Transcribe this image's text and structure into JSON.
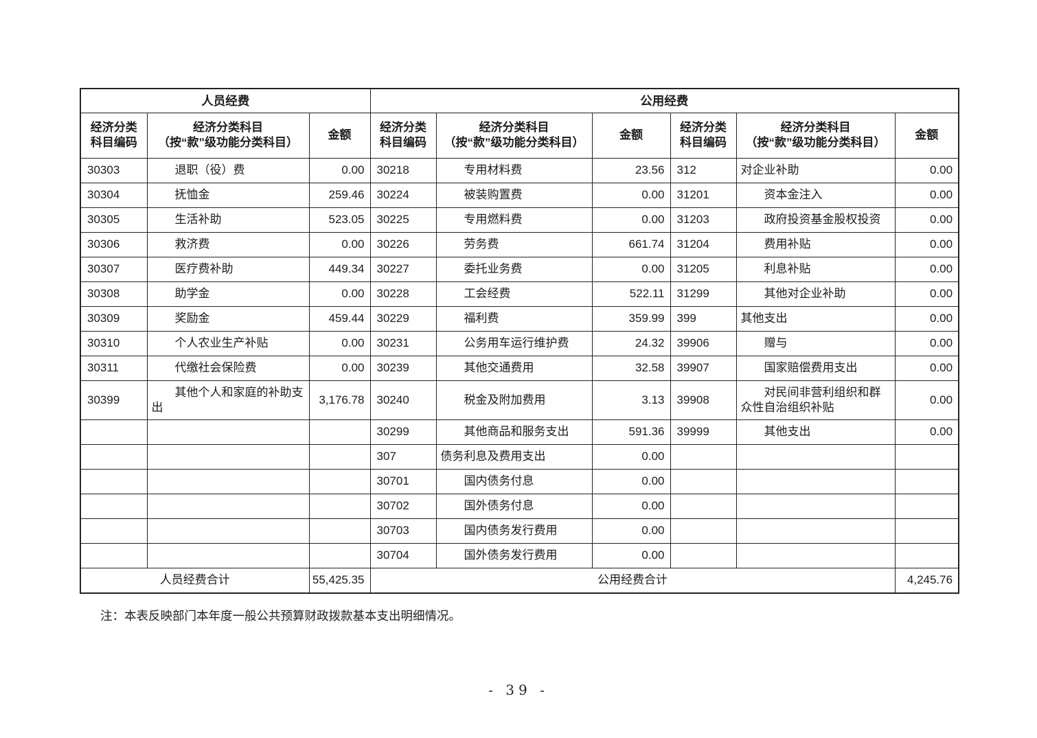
{
  "page": {
    "note": "注：本表反映部门本年度一般公共预算财政拨款基本支出明细情况。",
    "page_number": "- 39 -"
  },
  "table": {
    "group_headers": {
      "personnel": "人员经费",
      "public": "公用经费"
    },
    "column_headers": {
      "code": "经济分类\n科目编码",
      "name_line1": "经济分类科目",
      "name_line2": "（按“款”级功能分类科目）",
      "amount": "金额"
    },
    "rows": [
      {
        "tall": false,
        "cells": [
          {
            "code": "30303",
            "name": "退职（役）费",
            "amount": "0.00",
            "indent": true
          },
          {
            "code": "30218",
            "name": "专用材料费",
            "amount": "23.56",
            "indent": true
          },
          {
            "code": "312",
            "name": "对企业补助",
            "amount": "0.00",
            "indent": false
          }
        ]
      },
      {
        "tall": false,
        "cells": [
          {
            "code": "30304",
            "name": "抚恤金",
            "amount": "259.46",
            "indent": true
          },
          {
            "code": "30224",
            "name": "被装购置费",
            "amount": "0.00",
            "indent": true
          },
          {
            "code": "31201",
            "name": "资本金注入",
            "amount": "0.00",
            "indent": true
          }
        ]
      },
      {
        "tall": false,
        "cells": [
          {
            "code": "30305",
            "name": "生活补助",
            "amount": "523.05",
            "indent": true
          },
          {
            "code": "30225",
            "name": "专用燃料费",
            "amount": "0.00",
            "indent": true
          },
          {
            "code": "31203",
            "name": "政府投资基金股权投资",
            "amount": "0.00",
            "indent": true
          }
        ]
      },
      {
        "tall": false,
        "cells": [
          {
            "code": "30306",
            "name": "救济费",
            "amount": "0.00",
            "indent": true
          },
          {
            "code": "30226",
            "name": "劳务费",
            "amount": "661.74",
            "indent": true
          },
          {
            "code": "31204",
            "name": "费用补贴",
            "amount": "0.00",
            "indent": true
          }
        ]
      },
      {
        "tall": false,
        "cells": [
          {
            "code": "30307",
            "name": "医疗费补助",
            "amount": "449.34",
            "indent": true
          },
          {
            "code": "30227",
            "name": "委托业务费",
            "amount": "0.00",
            "indent": true
          },
          {
            "code": "31205",
            "name": "利息补贴",
            "amount": "0.00",
            "indent": true
          }
        ]
      },
      {
        "tall": false,
        "cells": [
          {
            "code": "30308",
            "name": "助学金",
            "amount": "0.00",
            "indent": true
          },
          {
            "code": "30228",
            "name": "工会经费",
            "amount": "522.11",
            "indent": true
          },
          {
            "code": "31299",
            "name": "其他对企业补助",
            "amount": "0.00",
            "indent": true
          }
        ]
      },
      {
        "tall": false,
        "cells": [
          {
            "code": "30309",
            "name": "奖励金",
            "amount": "459.44",
            "indent": true
          },
          {
            "code": "30229",
            "name": "福利费",
            "amount": "359.99",
            "indent": true
          },
          {
            "code": "399",
            "name": "其他支出",
            "amount": "0.00",
            "indent": false
          }
        ]
      },
      {
        "tall": false,
        "cells": [
          {
            "code": "30310",
            "name": "个人农业生产补贴",
            "amount": "0.00",
            "indent": true
          },
          {
            "code": "30231",
            "name": "公务用车运行维护费",
            "amount": "24.32",
            "indent": true
          },
          {
            "code": "39906",
            "name": "赠与",
            "amount": "0.00",
            "indent": true
          }
        ]
      },
      {
        "tall": false,
        "cells": [
          {
            "code": "30311",
            "name": "代缴社会保险费",
            "amount": "0.00",
            "indent": true
          },
          {
            "code": "30239",
            "name": "其他交通费用",
            "amount": "32.58",
            "indent": true
          },
          {
            "code": "39907",
            "name": "国家赔偿费用支出",
            "amount": "0.00",
            "indent": true
          }
        ]
      },
      {
        "tall": true,
        "cells": [
          {
            "code": "30399",
            "name": "其他个人和家庭的补助支出",
            "amount": "3,176.78",
            "indent": true
          },
          {
            "code": "30240",
            "name": "税金及附加费用",
            "amount": "3.13",
            "indent": true
          },
          {
            "code": "39908",
            "name": "对民间非营利组织和群众性自治组织补贴",
            "amount": "0.00",
            "indent": true
          }
        ]
      },
      {
        "tall": false,
        "cells": [
          {
            "code": "",
            "name": "",
            "amount": "",
            "indent": false
          },
          {
            "code": "30299",
            "name": "其他商品和服务支出",
            "amount": "591.36",
            "indent": true
          },
          {
            "code": "39999",
            "name": "其他支出",
            "amount": "0.00",
            "indent": true
          }
        ]
      },
      {
        "tall": false,
        "cells": [
          {
            "code": "",
            "name": "",
            "amount": "",
            "indent": false
          },
          {
            "code": "307",
            "name": "债务利息及费用支出",
            "amount": "0.00",
            "indent": false
          },
          {
            "code": "",
            "name": "",
            "amount": "",
            "indent": false
          }
        ]
      },
      {
        "tall": false,
        "cells": [
          {
            "code": "",
            "name": "",
            "amount": "",
            "indent": false
          },
          {
            "code": "30701",
            "name": "国内债务付息",
            "amount": "0.00",
            "indent": true
          },
          {
            "code": "",
            "name": "",
            "amount": "",
            "indent": false
          }
        ]
      },
      {
        "tall": false,
        "cells": [
          {
            "code": "",
            "name": "",
            "amount": "",
            "indent": false
          },
          {
            "code": "30702",
            "name": "国外债务付息",
            "amount": "0.00",
            "indent": true
          },
          {
            "code": "",
            "name": "",
            "amount": "",
            "indent": false
          }
        ]
      },
      {
        "tall": false,
        "cells": [
          {
            "code": "",
            "name": "",
            "amount": "",
            "indent": false
          },
          {
            "code": "30703",
            "name": "国内债务发行费用",
            "amount": "0.00",
            "indent": true
          },
          {
            "code": "",
            "name": "",
            "amount": "",
            "indent": false
          }
        ]
      },
      {
        "tall": false,
        "cells": [
          {
            "code": "",
            "name": "",
            "amount": "",
            "indent": false
          },
          {
            "code": "30704",
            "name": "国外债务发行费用",
            "amount": "0.00",
            "indent": true
          },
          {
            "code": "",
            "name": "",
            "amount": "",
            "indent": false
          }
        ]
      }
    ],
    "totals": {
      "personnel_label": "人员经费合计",
      "personnel_amount": "55,425.35",
      "public_label": "公用经费合计",
      "public_amount": "4,245.76"
    }
  }
}
